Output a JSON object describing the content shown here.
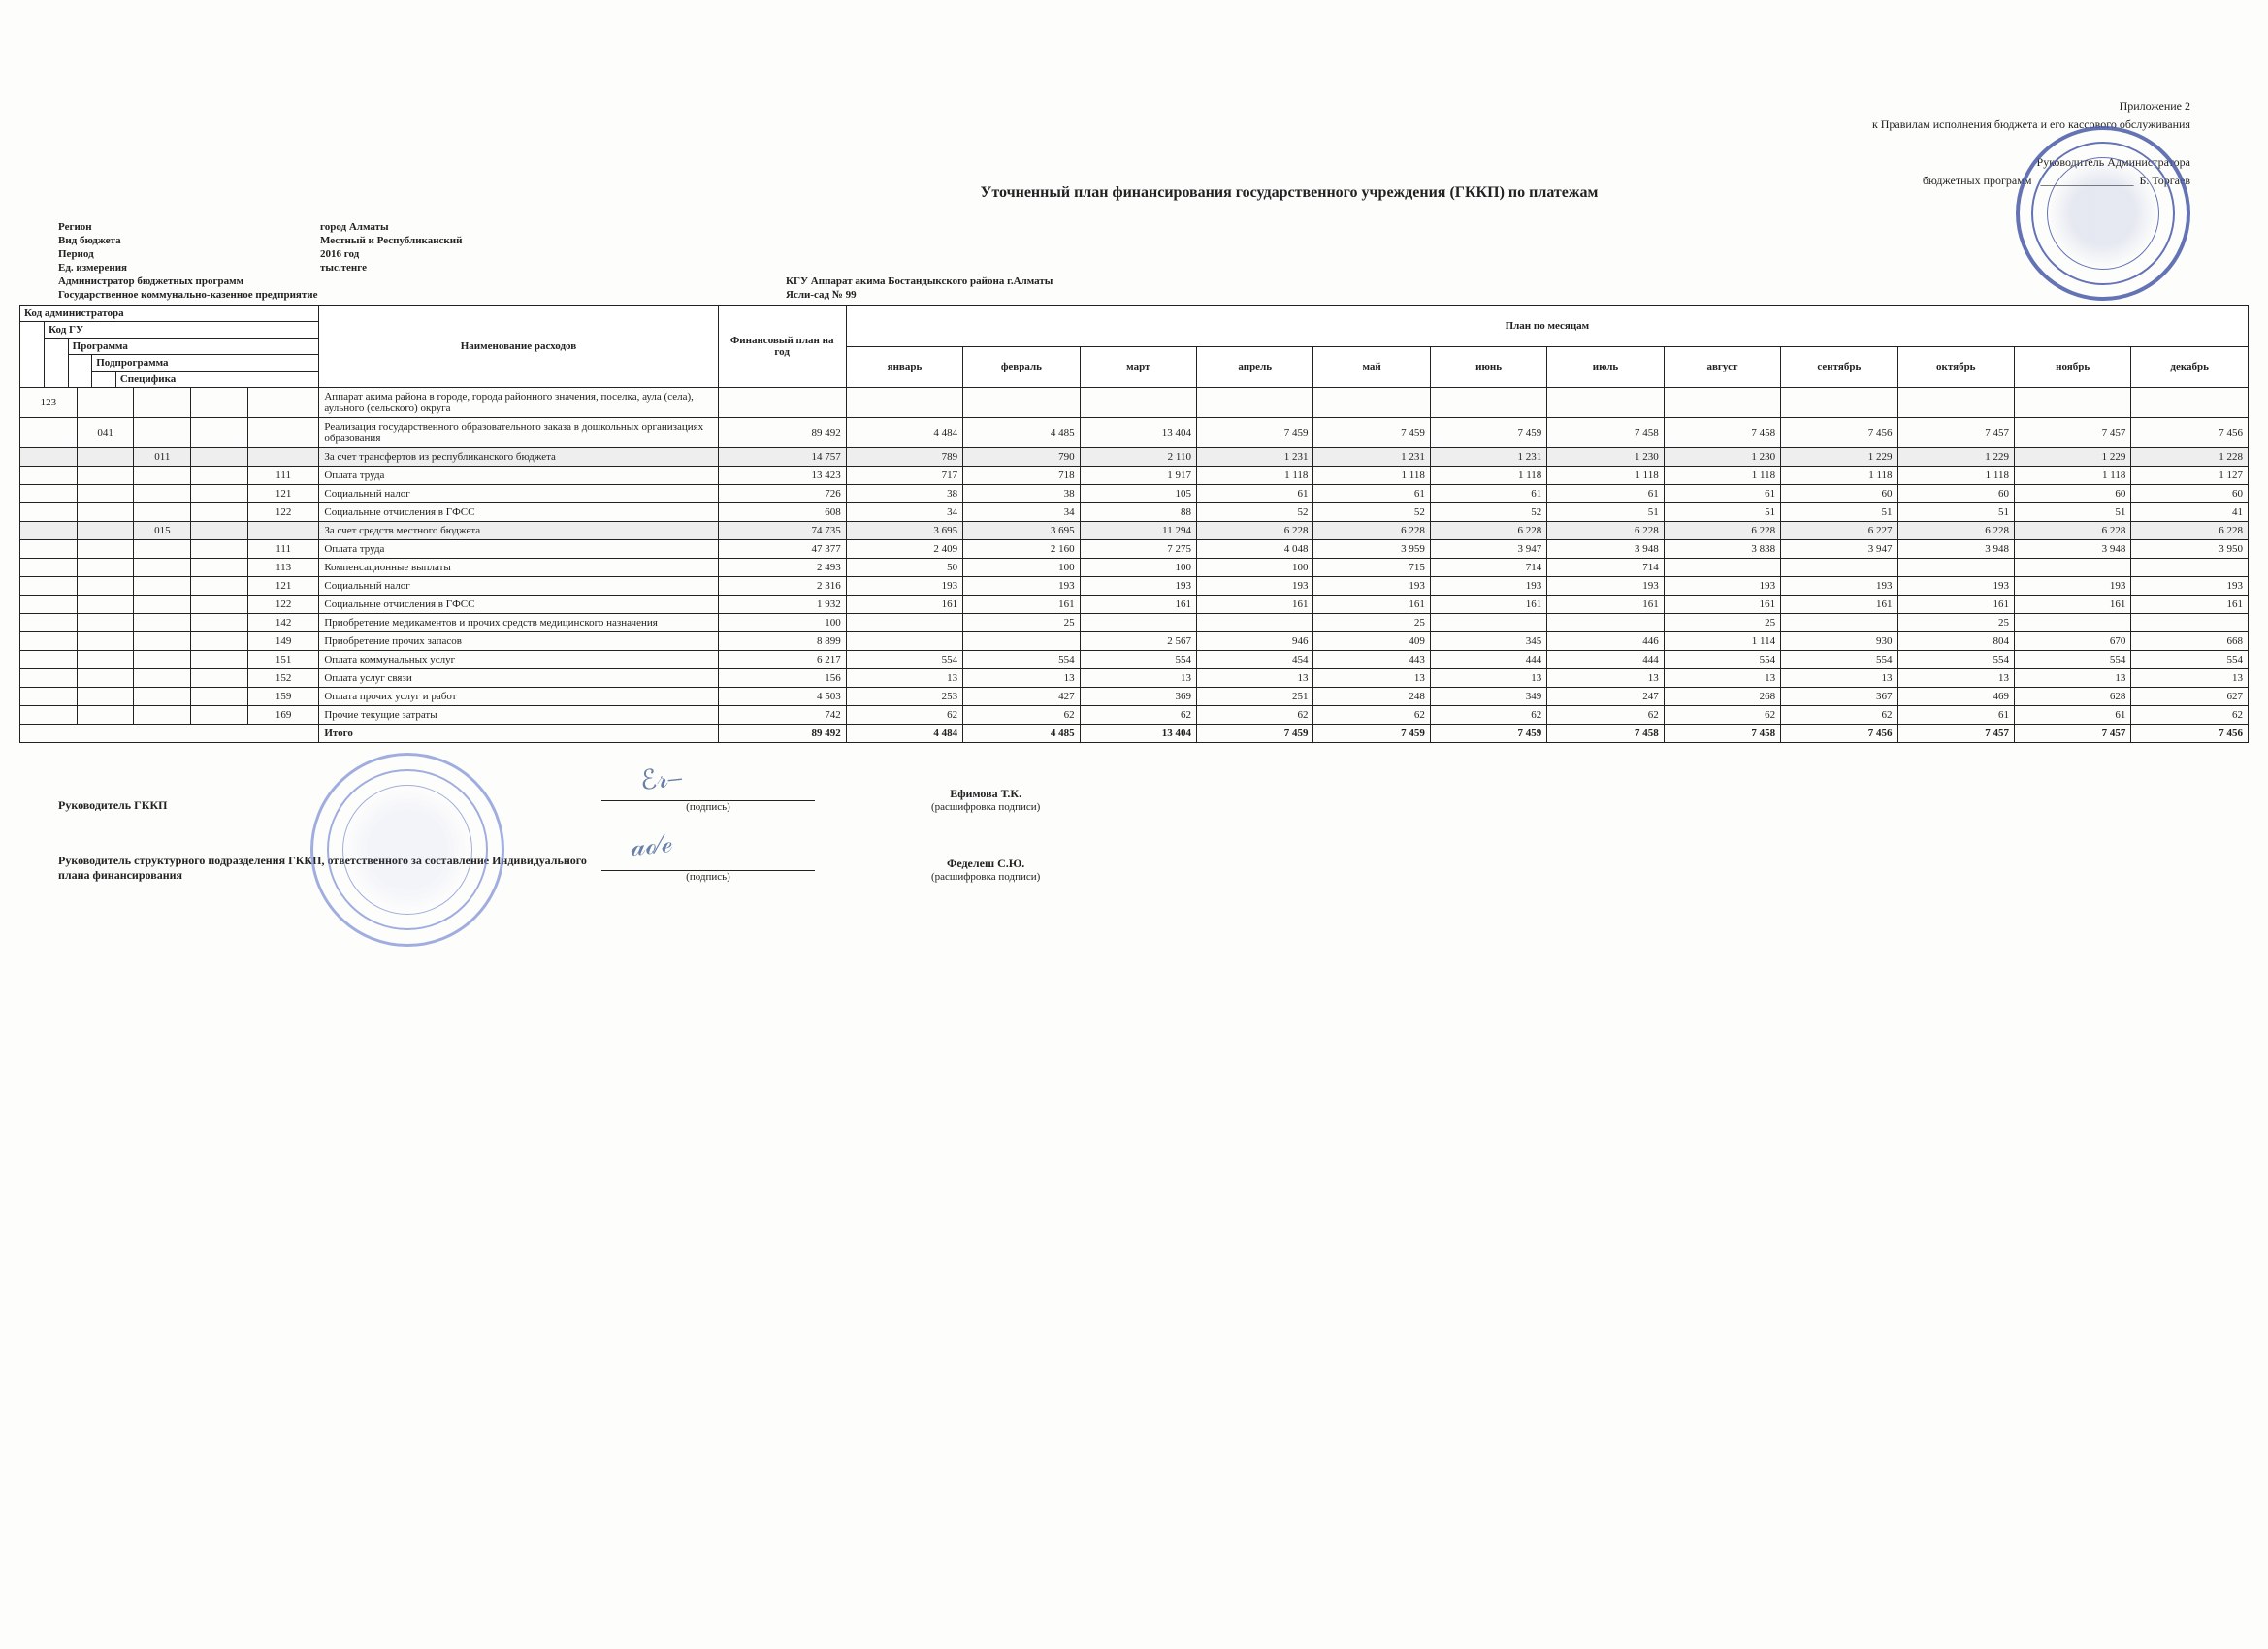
{
  "header": {
    "appendix": "Приложение 2",
    "appendix_sub": "к Правилам исполнения бюджета и его кассового обслуживания",
    "approve_line1": "Руководитель Администратора",
    "approve_line2": "бюджетных программ",
    "approve_name": "Б. Торгаев"
  },
  "title": "Уточненный план финансирования государственного учреждения (ГККП) по платежам",
  "meta": {
    "region_label": "Регион",
    "region_value": "город Алматы",
    "budget_type_label": "Вид бюджета",
    "budget_type_value": "Местный и Республиканский",
    "period_label": "Период",
    "period_value": "2016 год",
    "unit_label": "Ед. измерения",
    "unit_value": "тыс.тенге",
    "admin_label": "Администратор бюджетных программ",
    "admin_value": "КГУ Аппарат акима Бостандыкского района г.Алматы",
    "enterprise_label": "Государственное коммунально-казенное предприятие",
    "enterprise_value": "Ясли-сад № 99"
  },
  "table": {
    "header_codes": [
      "Код администратора",
      "Код ГУ",
      "Программа",
      "Подпрограмма",
      "Специфика"
    ],
    "header_name": "Наименование расходов",
    "header_plan": "Финансовый план на год",
    "header_months_group": "План по месяцам",
    "months": [
      "январь",
      "февраль",
      "март",
      "апрель",
      "май",
      "июнь",
      "июль",
      "август",
      "сентябрь",
      "октябрь",
      "ноябрь",
      "декабрь"
    ],
    "rows": [
      {
        "codes": [
          "123",
          "",
          "",
          "",
          ""
        ],
        "name": "Аппарат акима района в городе, города районного значения, поселка, аула (села), аульного (сельского) округа",
        "plan": "",
        "m": [
          "",
          "",
          "",
          "",
          "",
          "",
          "",
          "",
          "",
          "",
          "",
          ""
        ]
      },
      {
        "codes": [
          "",
          "041",
          "",
          "",
          ""
        ],
        "name": "Реализация государственного образовательного заказа в дошкольных организациях образования",
        "plan": "89 492",
        "m": [
          "4 484",
          "4 485",
          "13 404",
          "7 459",
          "7 459",
          "7 459",
          "7 458",
          "7 458",
          "7 456",
          "7 457",
          "7 457",
          "7 456"
        ]
      },
      {
        "codes": [
          "",
          "",
          "011",
          "",
          ""
        ],
        "name": "За счет трансфертов из республиканского бюджета",
        "plan": "14 757",
        "m": [
          "789",
          "790",
          "2 110",
          "1 231",
          "1 231",
          "1 231",
          "1 230",
          "1 230",
          "1 229",
          "1 229",
          "1 229",
          "1 228"
        ],
        "shaded": true
      },
      {
        "codes": [
          "",
          "",
          "",
          "",
          "111"
        ],
        "name": "Оплата труда",
        "plan": "13 423",
        "m": [
          "717",
          "718",
          "1 917",
          "1 118",
          "1 118",
          "1 118",
          "1 118",
          "1 118",
          "1 118",
          "1 118",
          "1 118",
          "1 127"
        ]
      },
      {
        "codes": [
          "",
          "",
          "",
          "",
          "121"
        ],
        "name": "Социальный налог",
        "plan": "726",
        "m": [
          "38",
          "38",
          "105",
          "61",
          "61",
          "61",
          "61",
          "61",
          "60",
          "60",
          "60",
          "60"
        ]
      },
      {
        "codes": [
          "",
          "",
          "",
          "",
          "122"
        ],
        "name": "Социальные отчисления в ГФСС",
        "plan": "608",
        "m": [
          "34",
          "34",
          "88",
          "52",
          "52",
          "52",
          "51",
          "51",
          "51",
          "51",
          "51",
          "41"
        ]
      },
      {
        "codes": [
          "",
          "",
          "015",
          "",
          ""
        ],
        "name": "За счет средств местного бюджета",
        "plan": "74 735",
        "m": [
          "3 695",
          "3 695",
          "11 294",
          "6 228",
          "6 228",
          "6 228",
          "6 228",
          "6 228",
          "6 227",
          "6 228",
          "6 228",
          "6 228"
        ],
        "shaded": true
      },
      {
        "codes": [
          "",
          "",
          "",
          "",
          "111"
        ],
        "name": "Оплата труда",
        "plan": "47 377",
        "m": [
          "2 409",
          "2 160",
          "7 275",
          "4 048",
          "3 959",
          "3 947",
          "3 948",
          "3 838",
          "3 947",
          "3 948",
          "3 948",
          "3 950"
        ]
      },
      {
        "codes": [
          "",
          "",
          "",
          "",
          "113"
        ],
        "name": "Компенсационные выплаты",
        "plan": "2 493",
        "m": [
          "50",
          "100",
          "100",
          "100",
          "715",
          "714",
          "714",
          "",
          "",
          "",
          "",
          ""
        ]
      },
      {
        "codes": [
          "",
          "",
          "",
          "",
          "121"
        ],
        "name": "Социальный налог",
        "plan": "2 316",
        "m": [
          "193",
          "193",
          "193",
          "193",
          "193",
          "193",
          "193",
          "193",
          "193",
          "193",
          "193",
          "193"
        ]
      },
      {
        "codes": [
          "",
          "",
          "",
          "",
          "122"
        ],
        "name": "Социальные отчисления в ГФСС",
        "plan": "1 932",
        "m": [
          "161",
          "161",
          "161",
          "161",
          "161",
          "161",
          "161",
          "161",
          "161",
          "161",
          "161",
          "161"
        ]
      },
      {
        "codes": [
          "",
          "",
          "",
          "",
          "142"
        ],
        "name": "Приобретение медикаментов и прочих средств медицинского назначения",
        "plan": "100",
        "m": [
          "",
          "25",
          "",
          "",
          "25",
          "",
          "",
          "25",
          "",
          "25",
          "",
          ""
        ]
      },
      {
        "codes": [
          "",
          "",
          "",
          "",
          "149"
        ],
        "name": "Приобретение прочих запасов",
        "plan": "8 899",
        "m": [
          "",
          "",
          "2 567",
          "946",
          "409",
          "345",
          "446",
          "1 114",
          "930",
          "804",
          "670",
          "668"
        ]
      },
      {
        "codes": [
          "",
          "",
          "",
          "",
          "151"
        ],
        "name": "Оплата коммунальных услуг",
        "plan": "6 217",
        "m": [
          "554",
          "554",
          "554",
          "454",
          "443",
          "444",
          "444",
          "554",
          "554",
          "554",
          "554",
          "554"
        ]
      },
      {
        "codes": [
          "",
          "",
          "",
          "",
          "152"
        ],
        "name": "Оплата услуг связи",
        "plan": "156",
        "m": [
          "13",
          "13",
          "13",
          "13",
          "13",
          "13",
          "13",
          "13",
          "13",
          "13",
          "13",
          "13"
        ]
      },
      {
        "codes": [
          "",
          "",
          "",
          "",
          "159"
        ],
        "name": "Оплата прочих услуг и работ",
        "plan": "4 503",
        "m": [
          "253",
          "427",
          "369",
          "251",
          "248",
          "349",
          "247",
          "268",
          "367",
          "469",
          "628",
          "627"
        ]
      },
      {
        "codes": [
          "",
          "",
          "",
          "",
          "169"
        ],
        "name": "Прочие текущие затраты",
        "plan": "742",
        "m": [
          "62",
          "62",
          "62",
          "62",
          "62",
          "62",
          "62",
          "62",
          "62",
          "61",
          "61",
          "62"
        ]
      }
    ],
    "total_label": "Итого",
    "total": {
      "plan": "89 492",
      "m": [
        "4 484",
        "4 485",
        "13 404",
        "7 459",
        "7 459",
        "7 459",
        "7 458",
        "7 458",
        "7 456",
        "7 457",
        "7 457",
        "7 456"
      ]
    }
  },
  "signatures": {
    "leader_label": "Руководитель ГККП",
    "leader_name": "Ефимова Т.К.",
    "struct_label": "Руководитель структурного подразделения ГККП, ответственного за составление Индивидуального плана финансирования",
    "struct_name": "Феделеш С.Ю.",
    "signature_sub": "(подпись)",
    "decode_sub": "(расшифровка подписи)"
  }
}
